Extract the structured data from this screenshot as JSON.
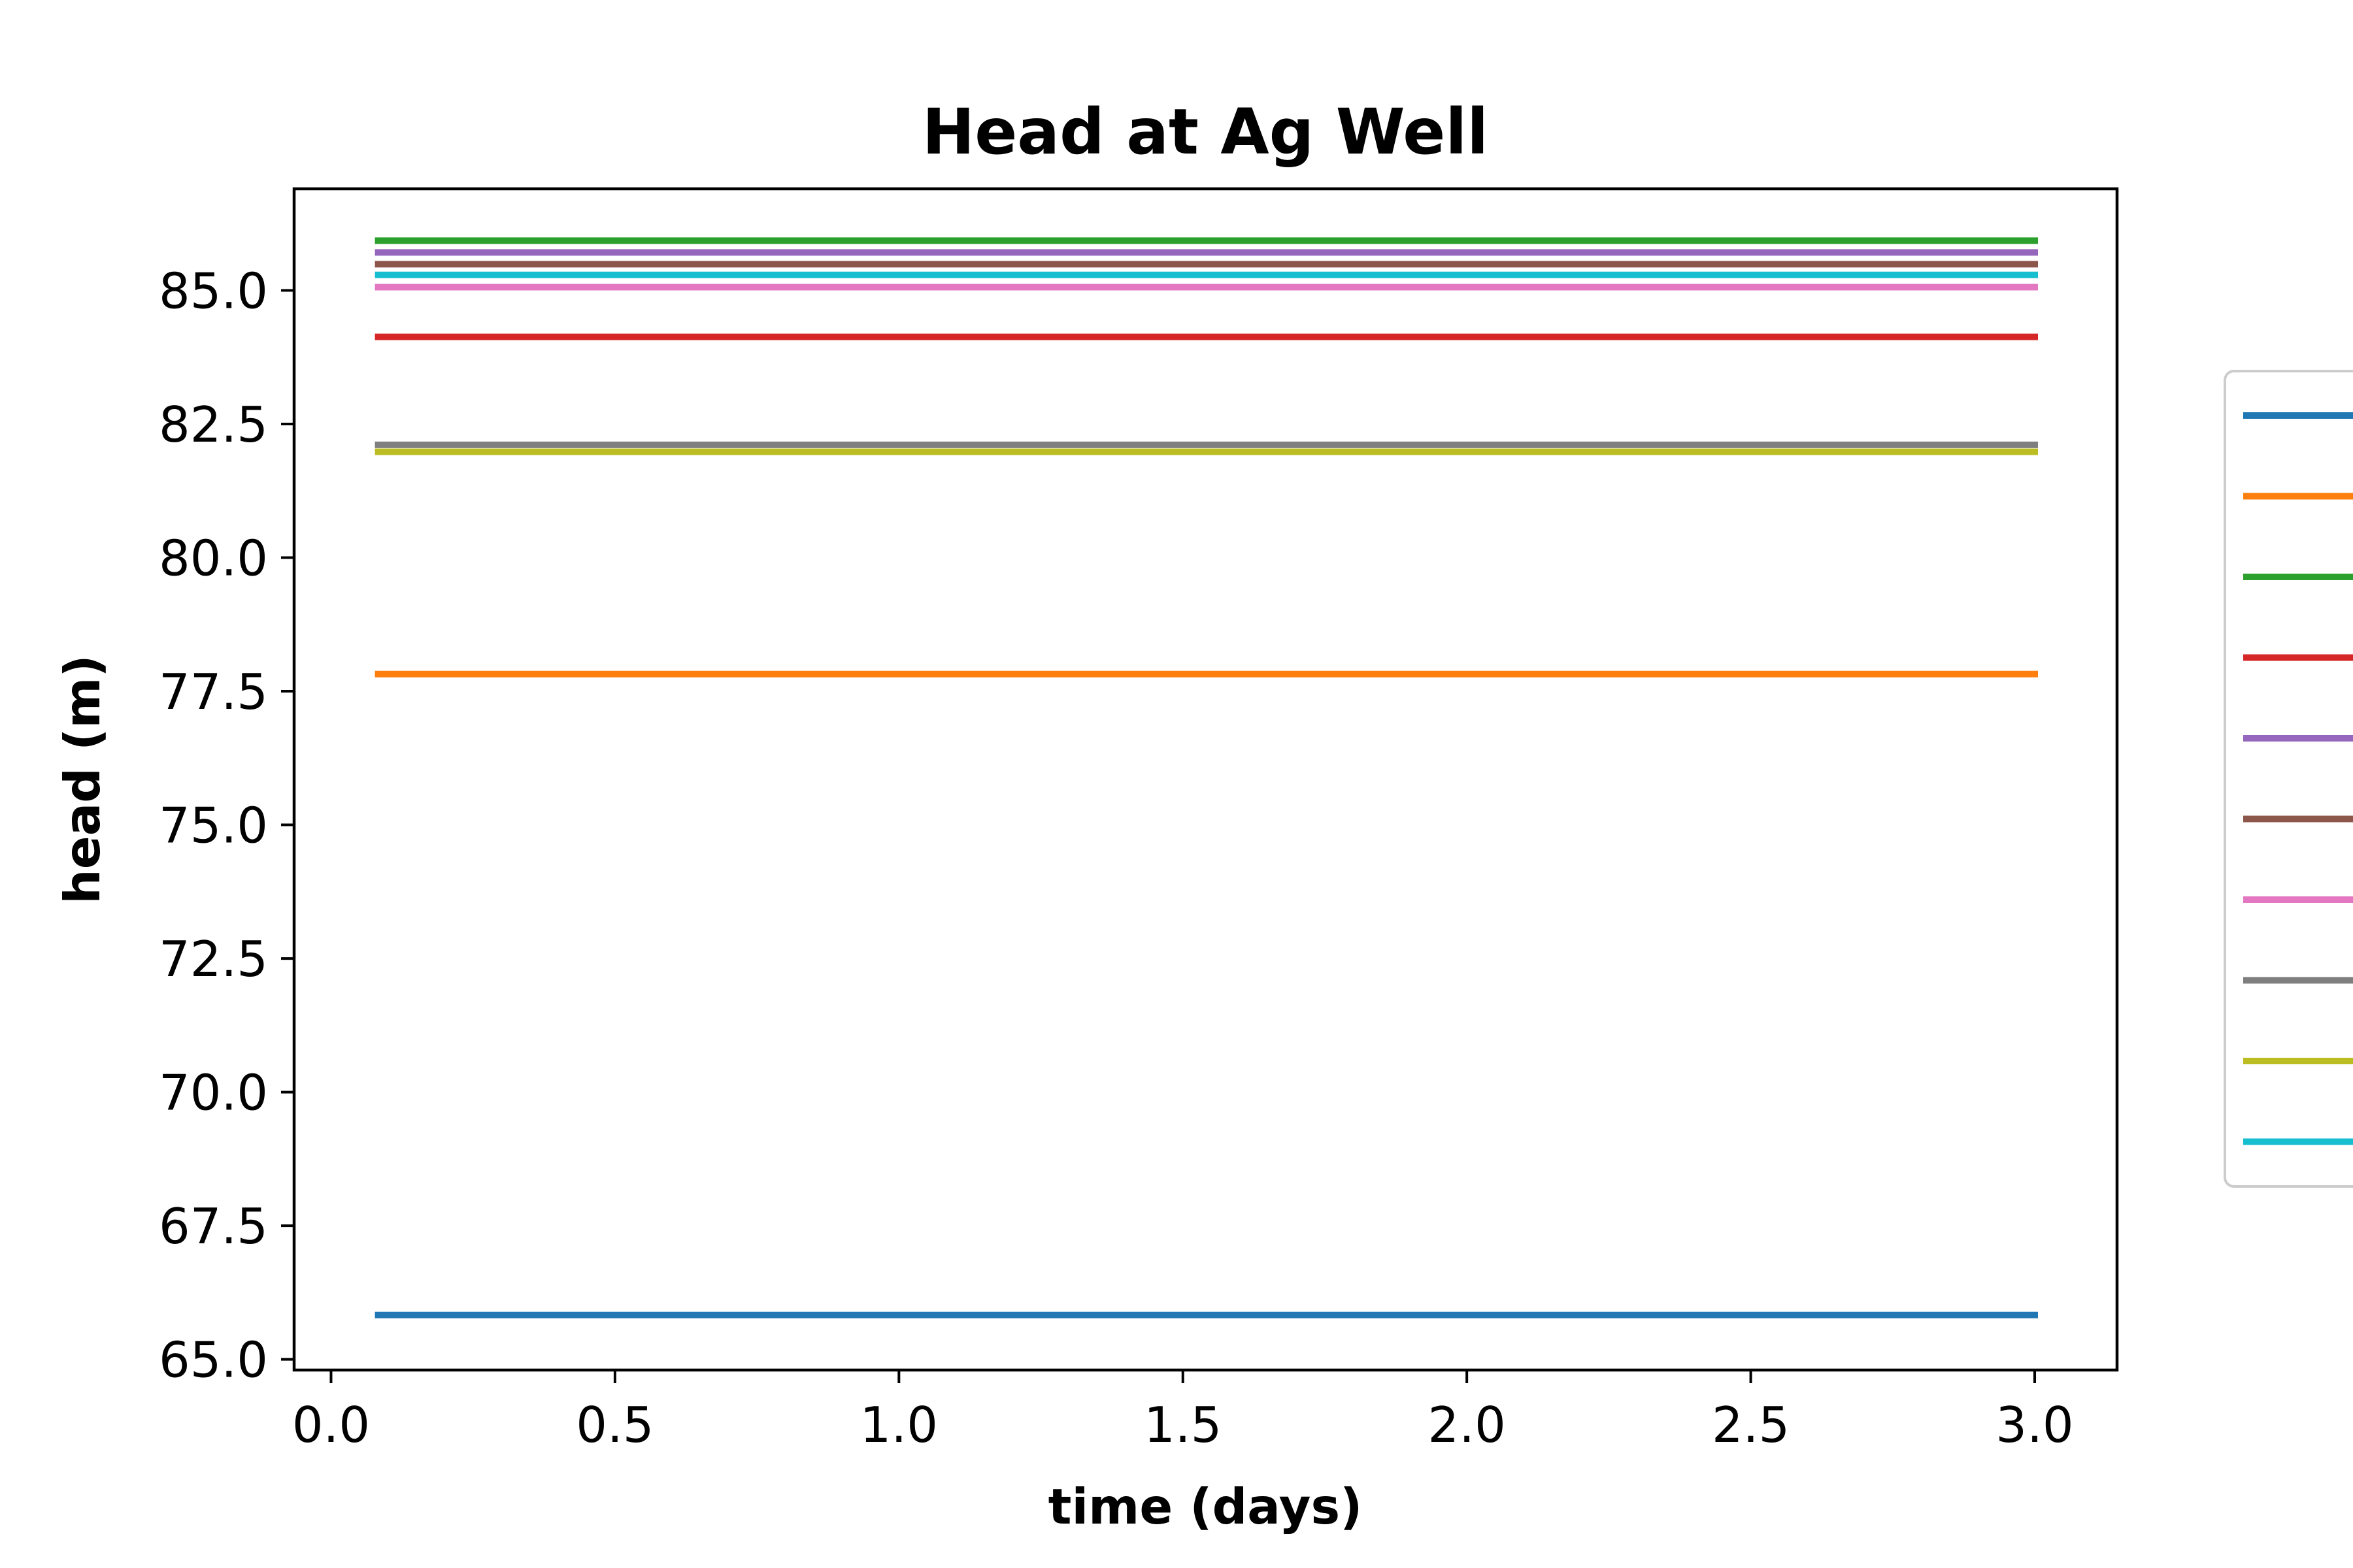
{
  "chart_data": {
    "type": "line",
    "title": "Head at Ag Well",
    "xlabel": "time (days)",
    "ylabel": "head (m)",
    "xlim": [
      -0.065,
      3.145
    ],
    "ylim": [
      64.8,
      86.9
    ],
    "xticks": [
      0.0,
      0.5,
      1.0,
      1.5,
      2.0,
      2.5,
      3.0
    ],
    "xtick_labels": [
      "0.0",
      "0.5",
      "1.0",
      "1.5",
      "2.0",
      "2.5",
      "3.0"
    ],
    "yticks": [
      65.0,
      67.5,
      70.0,
      72.5,
      75.0,
      77.5,
      80.0,
      82.5,
      85.0
    ],
    "ytick_labels": [
      "65.0",
      "67.5",
      "70.0",
      "72.5",
      "75.0",
      "77.5",
      "80.0",
      "82.5",
      "85.0"
    ],
    "grid": false,
    "legend": "outside-right (entries cut off)",
    "x": [
      0.083,
      3.0
    ],
    "series": [
      {
        "color": "#1f77b4",
        "values": [
          65.83,
          65.83
        ]
      },
      {
        "color": "#ff7f0e",
        "values": [
          77.82,
          77.82
        ]
      },
      {
        "color": "#2ca02c",
        "values": [
          85.93,
          85.93
        ]
      },
      {
        "color": "#d62728",
        "values": [
          84.13,
          84.13
        ]
      },
      {
        "color": "#9467bd",
        "values": [
          85.71,
          85.71
        ]
      },
      {
        "color": "#8c564b",
        "values": [
          85.49,
          85.49
        ]
      },
      {
        "color": "#e377c2",
        "values": [
          85.06,
          85.06
        ]
      },
      {
        "color": "#7f7f7f",
        "values": [
          82.11,
          82.11
        ]
      },
      {
        "color": "#bcbd22",
        "values": [
          81.98,
          81.98
        ]
      },
      {
        "color": "#17becf",
        "values": [
          85.29,
          85.29
        ]
      }
    ]
  }
}
